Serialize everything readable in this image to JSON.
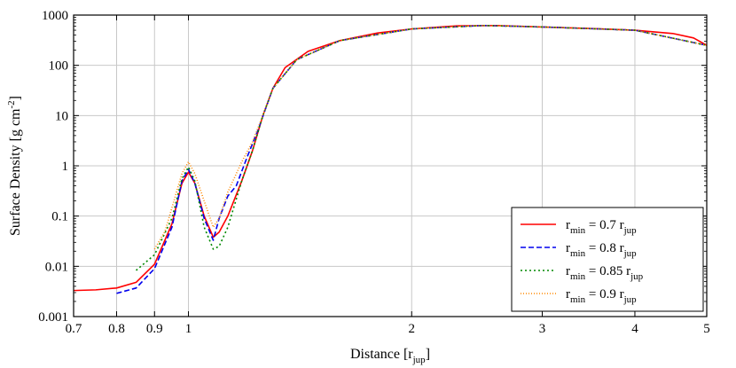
{
  "chart_data": {
    "type": "line",
    "xlabel": "Distance [r",
    "xlabel_sub": "jup",
    "xlabel_tail": "]",
    "ylabel": "Surface Density [g cm",
    "ylabel_sup": "-2",
    "ylabel_tail": "]",
    "x_scale": "log",
    "y_scale": "log",
    "xlim": [
      0.7,
      5
    ],
    "ylim": [
      0.001,
      1000
    ],
    "grid": true,
    "legend_position": "lower-right",
    "x_ticks": [
      {
        "value": 0.7,
        "label": "0.7"
      },
      {
        "value": 0.8,
        "label": "0.8"
      },
      {
        "value": 0.9,
        "label": "0.9"
      },
      {
        "value": 1,
        "label": "1"
      },
      {
        "value": 2,
        "label": "2"
      },
      {
        "value": 3,
        "label": "3"
      },
      {
        "value": 4,
        "label": "4"
      },
      {
        "value": 5,
        "label": "5"
      }
    ],
    "y_ticks": [
      {
        "value": 0.001,
        "label": "0.001"
      },
      {
        "value": 0.01,
        "label": "0.01"
      },
      {
        "value": 0.1,
        "label": "0.1"
      },
      {
        "value": 1,
        "label": "1"
      },
      {
        "value": 10,
        "label": "10"
      },
      {
        "value": 100,
        "label": "100"
      },
      {
        "value": 1000,
        "label": "1000"
      }
    ],
    "series": [
      {
        "label_main": "r",
        "label_sub": "min",
        "label_mid": " = 0.7 r",
        "label_sub2": "jup",
        "color": "#ff0000",
        "dash": "none",
        "points": [
          [
            0.7,
            0.0033
          ],
          [
            0.75,
            0.0034
          ],
          [
            0.8,
            0.0037
          ],
          [
            0.85,
            0.0048
          ],
          [
            0.9,
            0.011
          ],
          [
            0.95,
            0.07
          ],
          [
            0.98,
            0.45
          ],
          [
            1.0,
            0.75
          ],
          [
            1.02,
            0.45
          ],
          [
            1.05,
            0.1
          ],
          [
            1.08,
            0.038
          ],
          [
            1.1,
            0.048
          ],
          [
            1.13,
            0.1
          ],
          [
            1.18,
            0.5
          ],
          [
            1.22,
            2.0
          ],
          [
            1.26,
            10
          ],
          [
            1.3,
            35
          ],
          [
            1.35,
            90
          ],
          [
            1.45,
            190
          ],
          [
            1.6,
            310
          ],
          [
            1.8,
            440
          ],
          [
            2.0,
            530
          ],
          [
            2.3,
            610
          ],
          [
            2.6,
            620
          ],
          [
            3.0,
            580
          ],
          [
            3.5,
            540
          ],
          [
            4.0,
            500
          ],
          [
            4.5,
            430
          ],
          [
            4.8,
            350
          ],
          [
            5.0,
            250
          ]
        ]
      },
      {
        "label_main": "r",
        "label_sub": "min",
        "label_mid": " = 0.8 r",
        "label_sub2": "jup",
        "color": "#0000ee",
        "dash": "6,3",
        "points": [
          [
            0.8,
            0.0029
          ],
          [
            0.85,
            0.0037
          ],
          [
            0.9,
            0.009
          ],
          [
            0.95,
            0.06
          ],
          [
            0.98,
            0.5
          ],
          [
            1.0,
            0.85
          ],
          [
            1.02,
            0.45
          ],
          [
            1.05,
            0.09
          ],
          [
            1.08,
            0.033
          ],
          [
            1.1,
            0.09
          ],
          [
            1.13,
            0.25
          ],
          [
            1.16,
            0.4
          ],
          [
            1.2,
            1.5
          ],
          [
            1.24,
            5
          ],
          [
            1.3,
            35
          ],
          [
            1.4,
            130
          ],
          [
            1.6,
            310
          ],
          [
            2.0,
            530
          ],
          [
            2.5,
            620
          ],
          [
            3.0,
            580
          ],
          [
            4.0,
            500
          ],
          [
            5.0,
            250
          ]
        ]
      },
      {
        "label_main": "r",
        "label_sub": "min",
        "label_mid": " = 0.85 r",
        "label_sub2": "jup",
        "color": "#008800",
        "dash": "2,3",
        "points": [
          [
            0.85,
            0.0083
          ],
          [
            0.9,
            0.017
          ],
          [
            0.95,
            0.09
          ],
          [
            0.98,
            0.55
          ],
          [
            1.0,
            0.95
          ],
          [
            1.02,
            0.5
          ],
          [
            1.05,
            0.06
          ],
          [
            1.08,
            0.022
          ],
          [
            1.1,
            0.025
          ],
          [
            1.13,
            0.06
          ],
          [
            1.18,
            0.5
          ],
          [
            1.22,
            2.0
          ],
          [
            1.26,
            10
          ],
          [
            1.3,
            35
          ],
          [
            1.4,
            130
          ],
          [
            1.6,
            310
          ],
          [
            2.0,
            530
          ],
          [
            2.5,
            620
          ],
          [
            3.0,
            580
          ],
          [
            4.0,
            500
          ],
          [
            5.0,
            250
          ]
        ]
      },
      {
        "label_main": "r",
        "label_sub": "min",
        "label_mid": " = 0.9 r",
        "label_sub2": "jup",
        "color": "#ff8800",
        "dash": "1,2",
        "points": [
          [
            0.9,
            0.022
          ],
          [
            0.93,
            0.05
          ],
          [
            0.96,
            0.25
          ],
          [
            0.98,
            0.7
          ],
          [
            1.0,
            1.2
          ],
          [
            1.02,
            0.7
          ],
          [
            1.05,
            0.2
          ],
          [
            1.08,
            0.06
          ],
          [
            1.1,
            0.09
          ],
          [
            1.13,
            0.3
          ],
          [
            1.18,
            1.2
          ],
          [
            1.22,
            3.0
          ],
          [
            1.26,
            10
          ],
          [
            1.3,
            35
          ],
          [
            1.4,
            130
          ],
          [
            1.6,
            310
          ],
          [
            2.0,
            530
          ],
          [
            2.5,
            620
          ],
          [
            3.0,
            580
          ],
          [
            4.0,
            500
          ],
          [
            5.0,
            250
          ]
        ]
      }
    ]
  }
}
